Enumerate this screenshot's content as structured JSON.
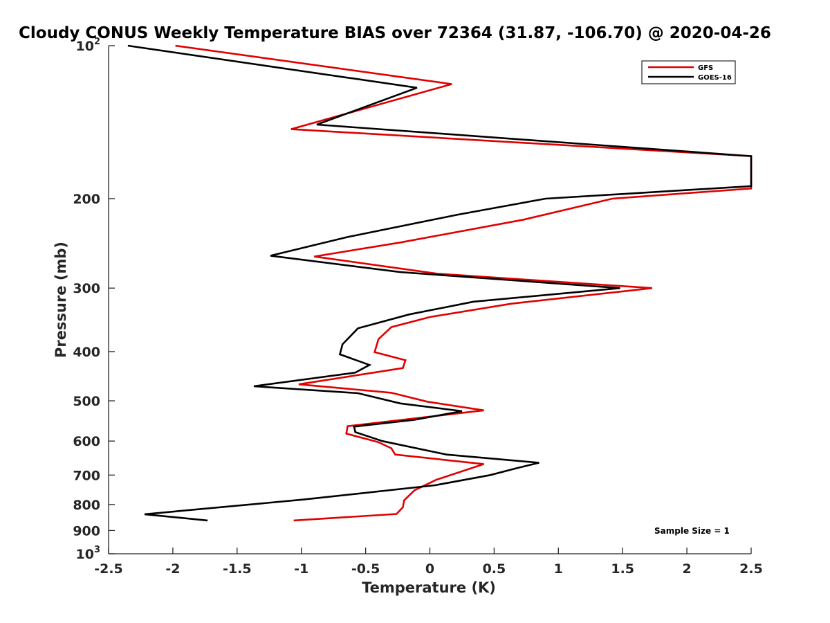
{
  "chart_data": {
    "type": "line",
    "title": "Cloudy CONUS Weekly Temperature BIAS over 72364 (31.87, -106.70) @ 2020-04-26",
    "xlabel": "Temperature (K)",
    "ylabel": "Pressure (mb)",
    "xlim": [
      -2.5,
      2.5
    ],
    "ylim": [
      100,
      1000
    ],
    "y_scale": "log",
    "y_reversed": true,
    "grid": false,
    "legend_position": "top-right",
    "x_ticks": [
      "-2.5",
      "-2",
      "-1.5",
      "-1",
      "-0.5",
      "0",
      "0.5",
      "1",
      "1.5",
      "2",
      "2.5"
    ],
    "x_tick_values": [
      -2.5,
      -2,
      -1.5,
      -1,
      -0.5,
      0,
      0.5,
      1,
      1.5,
      2,
      2.5
    ],
    "y_ticks": [
      {
        "value": 100,
        "base": "10",
        "exp": "2"
      },
      {
        "value": 200,
        "label": "200"
      },
      {
        "value": 300,
        "label": "300"
      },
      {
        "value": 400,
        "label": "400"
      },
      {
        "value": 500,
        "label": "500"
      },
      {
        "value": 600,
        "label": "600"
      },
      {
        "value": 700,
        "label": "700"
      },
      {
        "value": 800,
        "label": "800"
      },
      {
        "value": 900,
        "label": "900"
      },
      {
        "value": 1000,
        "base": "10",
        "exp": "3"
      }
    ],
    "annotation": "Sample Size = 1",
    "series": [
      {
        "name": "GFS",
        "color": "#e00000",
        "points": [
          [
            -1.98,
            100
          ],
          [
            0.17,
            119
          ],
          [
            -1.08,
            146
          ],
          [
            2.5,
            165
          ],
          [
            2.5,
            191
          ],
          [
            1.42,
            200
          ],
          [
            0.73,
            220
          ],
          [
            -0.23,
            244
          ],
          [
            -0.9,
            260
          ],
          [
            0.06,
            281
          ],
          [
            1.73,
            300
          ],
          [
            0.63,
            322
          ],
          [
            0.0,
            342
          ],
          [
            -0.3,
            358
          ],
          [
            -0.4,
            378
          ],
          [
            -0.43,
            401
          ],
          [
            -0.19,
            416
          ],
          [
            -0.21,
            431
          ],
          [
            -1.02,
            464
          ],
          [
            -0.3,
            482
          ],
          [
            -0.02,
            502
          ],
          [
            0.42,
            522
          ],
          [
            -0.64,
            561
          ],
          [
            -0.65,
            580
          ],
          [
            -0.4,
            603
          ],
          [
            -0.3,
            620
          ],
          [
            -0.27,
            638
          ],
          [
            0.42,
            666
          ],
          [
            0.05,
            715
          ],
          [
            -0.12,
            750
          ],
          [
            -0.2,
            785
          ],
          [
            -0.21,
            810
          ],
          [
            -0.26,
            835
          ],
          [
            -1.06,
            860
          ]
        ]
      },
      {
        "name": "GOES-16",
        "color": "#000000",
        "points": [
          [
            -2.35,
            100
          ],
          [
            -0.1,
            121
          ],
          [
            -0.88,
            143
          ],
          [
            2.5,
            165
          ],
          [
            2.5,
            189
          ],
          [
            0.9,
            200
          ],
          [
            0.22,
            215
          ],
          [
            -0.64,
            238
          ],
          [
            -1.24,
            259
          ],
          [
            -0.23,
            279
          ],
          [
            1.48,
            300
          ],
          [
            0.34,
            319
          ],
          [
            -0.16,
            338
          ],
          [
            -0.56,
            360
          ],
          [
            -0.68,
            387
          ],
          [
            -0.7,
            405
          ],
          [
            -0.47,
            425
          ],
          [
            -0.58,
            440
          ],
          [
            -1.37,
            468
          ],
          [
            -0.56,
            483
          ],
          [
            -0.23,
            506
          ],
          [
            0.25,
            524
          ],
          [
            -0.12,
            545
          ],
          [
            -0.59,
            562
          ],
          [
            -0.58,
            576
          ],
          [
            -0.37,
            600
          ],
          [
            0.13,
            638
          ],
          [
            0.85,
            662
          ],
          [
            0.68,
            678
          ],
          [
            0.47,
            700
          ],
          [
            0.04,
            733
          ],
          [
            -0.98,
            782
          ],
          [
            -2.22,
            836
          ],
          [
            -1.73,
            860
          ]
        ]
      }
    ]
  }
}
